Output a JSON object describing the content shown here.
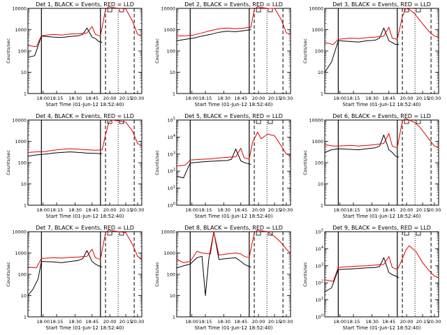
{
  "chart_data": [
    {
      "type": "line",
      "title": "Det 1, BLACK = Events, RED = LLD",
      "xlabel": "Start Time (01-Jun-12 18:52:40)",
      "ylabel": "Counts/sec",
      "x_ticks": [
        "18:00",
        "18:15",
        "18:30",
        "18:45",
        "20:00",
        "20:15",
        "20:30"
      ],
      "y_ticks": [
        "1",
        "10",
        "100",
        "1000",
        "10000"
      ],
      "y_scale": "log",
      "ylim": [
        1,
        10000
      ],
      "series": [
        {
          "color": "#000000",
          "x": [
            0,
            8,
            16,
            30,
            40,
            50,
            60,
            65,
            70,
            76,
            80,
            84,
            88
          ],
          "y": [
            50,
            60,
            500,
            450,
            430,
            480,
            520,
            600,
            1200,
            450,
            380,
            280,
            250
          ]
        },
        {
          "color": "#e00000",
          "x": [
            0,
            10,
            16,
            30,
            40,
            50,
            60,
            70,
            76,
            80,
            86,
            92,
            96,
            100,
            108,
            116,
            124,
            130,
            135
          ],
          "y": [
            180,
            160,
            520,
            600,
            560,
            620,
            650,
            700,
            1400,
            600,
            500,
            9000,
            12000,
            11000,
            10000,
            9500,
            2500,
            600,
            500
          ]
        }
      ]
    },
    {
      "type": "line",
      "title": "Det 2, BLACK = Events, RED = LLD",
      "xlabel": "Start Time (01-Jun-12 18:52:40)",
      "ylabel": "Counts/sec",
      "x_ticks": [
        "18:00",
        "18:15",
        "18:30",
        "18:45",
        "20:00",
        "20:15",
        "20:30"
      ],
      "y_ticks": [
        "1",
        "10",
        "100",
        "1000",
        "10000"
      ],
      "y_scale": "log",
      "ylim": [
        1,
        10000
      ],
      "series": [
        {
          "color": "#000000",
          "x": [
            0,
            10,
            20,
            30,
            40,
            50,
            60,
            70,
            80,
            88
          ],
          "y": [
            300,
            350,
            400,
            500,
            600,
            750,
            850,
            800,
            900,
            1000
          ]
        },
        {
          "color": "#e00000",
          "x": [
            0,
            10,
            20,
            30,
            40,
            50,
            60,
            70,
            80,
            88,
            92,
            96,
            100,
            108,
            116,
            124,
            130,
            135
          ],
          "y": [
            500,
            520,
            560,
            700,
            900,
            1100,
            1200,
            1100,
            1200,
            1300,
            9000,
            12000,
            11000,
            10000,
            10000,
            3000,
            700,
            600
          ]
        }
      ]
    },
    {
      "type": "line",
      "title": "Det 3, BLACK = Events, RED = LLD",
      "xlabel": "Start Time (01-Jun-12 18:52:40)",
      "ylabel": "Counts/sec",
      "x_ticks": [
        "18:00",
        "18:15",
        "18:30",
        "18:45",
        "20:00",
        "20:15",
        "20:30"
      ],
      "y_ticks": [
        "1",
        "10",
        "100",
        "1000",
        "10000"
      ],
      "y_scale": "log",
      "ylim": [
        1,
        10000
      ],
      "series": [
        {
          "color": "#000000",
          "x": [
            0,
            8,
            16,
            30,
            40,
            50,
            60,
            65,
            70,
            76,
            80,
            84,
            88
          ],
          "y": [
            10,
            30,
            300,
            280,
            260,
            300,
            320,
            400,
            1200,
            300,
            250,
            200,
            200
          ]
        },
        {
          "color": "#e00000",
          "x": [
            0,
            10,
            16,
            30,
            40,
            50,
            60,
            70,
            76,
            80,
            86,
            92,
            96,
            100,
            106,
            112,
            118,
            124,
            130,
            135
          ],
          "y": [
            250,
            200,
            350,
            400,
            380,
            420,
            450,
            500,
            1300,
            400,
            350,
            4000,
            10000,
            9000,
            6000,
            3000,
            1500,
            800,
            500,
            450
          ]
        }
      ]
    },
    {
      "type": "line",
      "title": "Det 4, BLACK = Events, RED = LLD",
      "xlabel": "Start Time (01-Jun-12 18:52:40)",
      "ylabel": "Counts/sec",
      "x_ticks": [
        "18:00",
        "18:15",
        "18:30",
        "18:45",
        "20:00",
        "20:15",
        "20:30"
      ],
      "y_ticks": [
        "1",
        "10",
        "100",
        "1000",
        "10000"
      ],
      "y_scale": "log",
      "ylim": [
        1,
        10000
      ],
      "series": [
        {
          "color": "#000000",
          "x": [
            0,
            10,
            20,
            30,
            40,
            50,
            60,
            70,
            80,
            88
          ],
          "y": [
            200,
            230,
            250,
            280,
            300,
            320,
            300,
            280,
            270,
            260
          ]
        },
        {
          "color": "#e00000",
          "x": [
            0,
            10,
            20,
            30,
            40,
            50,
            60,
            70,
            80,
            88,
            92,
            96,
            100,
            108,
            116,
            124,
            130,
            135
          ],
          "y": [
            300,
            320,
            330,
            380,
            420,
            450,
            430,
            400,
            380,
            400,
            2000,
            8000,
            10000,
            9000,
            8000,
            3000,
            800,
            600
          ]
        }
      ]
    },
    {
      "type": "line",
      "title": "Det 5, BLACK = Events, RED = LLD",
      "xlabel": "Start Time (01-Jun-12 18:52:40)",
      "ylabel": "Counts/sec",
      "x_ticks": [
        "18:00",
        "18:15",
        "18:30",
        "18:45",
        "20:00",
        "20:15",
        "20:30"
      ],
      "y_ticks": [
        "10^0",
        "10^1",
        "10^2",
        "10^3",
        "10^4",
        "10^5"
      ],
      "y_scale": "log",
      "ylim": [
        1,
        100000
      ],
      "series": [
        {
          "color": "#000000",
          "x": [
            0,
            8,
            16,
            30,
            40,
            50,
            60,
            65,
            70,
            76,
            80,
            84,
            88
          ],
          "y": [
            50,
            40,
            300,
            350,
            380,
            400,
            420,
            500,
            2000,
            400,
            320,
            280,
            250
          ]
        },
        {
          "color": "#e00000",
          "x": [
            0,
            10,
            16,
            30,
            40,
            50,
            60,
            70,
            76,
            80,
            86,
            90,
            96,
            100,
            108,
            116,
            124,
            130,
            135
          ],
          "y": [
            200,
            220,
            450,
            500,
            520,
            600,
            650,
            700,
            2200,
            600,
            500,
            5000,
            20000,
            8000,
            15000,
            12000,
            3000,
            1000,
            800
          ]
        }
      ]
    },
    {
      "type": "line",
      "title": "Det 6, BLACK = Events, RED = LLD",
      "xlabel": "Start Time (01-Jun-12 18:52:40)",
      "ylabel": "Counts/sec",
      "x_ticks": [
        "18:00",
        "18:15",
        "18:30",
        "18:45",
        "20:00",
        "20:15",
        "20:30"
      ],
      "y_ticks": [
        "1",
        "10",
        "100",
        "1000",
        "10000"
      ],
      "y_scale": "log",
      "ylim": [
        1,
        10000
      ],
      "series": [
        {
          "color": "#000000",
          "x": [
            0,
            8,
            16,
            30,
            40,
            50,
            60,
            65,
            70,
            76,
            80,
            84,
            88
          ],
          "y": [
            300,
            400,
            450,
            420,
            400,
            450,
            500,
            600,
            2000,
            400,
            300,
            200,
            180
          ]
        },
        {
          "color": "#e00000",
          "x": [
            0,
            10,
            16,
            30,
            40,
            50,
            60,
            70,
            76,
            80,
            86,
            92,
            96,
            100,
            106,
            112,
            118,
            124,
            130,
            135
          ],
          "y": [
            700,
            600,
            600,
            650,
            600,
            650,
            700,
            800,
            2300,
            600,
            500,
            9000,
            12000,
            10000,
            8000,
            5000,
            2500,
            1200,
            600,
            500
          ]
        }
      ]
    },
    {
      "type": "line",
      "title": "Det 7, BLACK = Events, RED = LLD",
      "xlabel": "Start Time (01-Jun-12 18:52:40)",
      "ylabel": "Counts/sec",
      "x_ticks": [
        "18:00",
        "18:15",
        "18:30",
        "18:45",
        "20:00",
        "20:15",
        "20:30"
      ],
      "y_ticks": [
        "1",
        "10",
        "100",
        "1000",
        "10000"
      ],
      "y_scale": "log",
      "ylim": [
        1,
        10000
      ],
      "series": [
        {
          "color": "#000000",
          "x": [
            0,
            6,
            12,
            16,
            30,
            40,
            50,
            60,
            65,
            70,
            76,
            80,
            84,
            88
          ],
          "y": [
            10,
            20,
            60,
            400,
            380,
            350,
            400,
            450,
            550,
            1300,
            400,
            300,
            250,
            220
          ]
        },
        {
          "color": "#e00000",
          "x": [
            0,
            10,
            16,
            30,
            40,
            50,
            60,
            70,
            76,
            80,
            86,
            92,
            96,
            100,
            108,
            116,
            124,
            130,
            135
          ],
          "y": [
            220,
            200,
            550,
            600,
            580,
            620,
            650,
            700,
            1500,
            600,
            500,
            9000,
            12000,
            11000,
            10000,
            9000,
            2500,
            700,
            500
          ]
        }
      ]
    },
    {
      "type": "line",
      "title": "Det 8, BLACK = Events, RED = LLD",
      "xlabel": "Start Time (01-Jun-12 18:52:40)",
      "ylabel": "Counts/sec",
      "x_ticks": [
        "18:00",
        "18:15",
        "18:30",
        "18:45",
        "20:00",
        "20:15",
        "20:30"
      ],
      "y_ticks": [
        "1",
        "10",
        "100",
        "1000",
        "10000"
      ],
      "y_scale": "log",
      "ylim": [
        1,
        10000
      ],
      "series": [
        {
          "color": "#000000",
          "x": [
            0,
            8,
            16,
            24,
            30,
            34,
            38,
            44,
            50,
            60,
            70,
            76,
            80,
            84,
            88
          ],
          "y": [
            200,
            250,
            300,
            600,
            700,
            10,
            500,
            10000,
            500,
            550,
            600,
            400,
            300,
            250,
            220
          ]
        },
        {
          "color": "#e00000",
          "x": [
            0,
            8,
            16,
            24,
            30,
            40,
            44,
            50,
            60,
            70,
            76,
            80,
            86,
            92,
            96,
            100,
            108,
            116,
            124,
            130,
            135
          ],
          "y": [
            500,
            350,
            400,
            1200,
            1000,
            900,
            10000,
            800,
            900,
            1000,
            900,
            700,
            600,
            9000,
            12000,
            11000,
            10000,
            6000,
            3000,
            1500,
            1000
          ]
        }
      ]
    },
    {
      "type": "line",
      "title": "Det 9, BLACK = Events, RED = LLD",
      "xlabel": "Start Time (01-Jun-12 18:52:40)",
      "ylabel": "Counts/sec",
      "x_ticks": [
        "18:00",
        "18:15",
        "18:30",
        "18:45",
        "20:00",
        "20:15",
        "20:30"
      ],
      "y_ticks": [
        "10^0",
        "10^1",
        "10^2",
        "10^3",
        "10^4",
        "10^5"
      ],
      "y_scale": "log",
      "ylim": [
        1,
        100000
      ],
      "series": [
        {
          "color": "#000000",
          "x": [
            0,
            8,
            16,
            30,
            40,
            50,
            60,
            65,
            70,
            76,
            80,
            84,
            88
          ],
          "y": [
            30,
            50,
            600,
            650,
            700,
            750,
            800,
            900,
            3000,
            400,
            300,
            250,
            200
          ]
        },
        {
          "color": "#e00000",
          "x": [
            0,
            10,
            16,
            30,
            40,
            50,
            60,
            70,
            76,
            80,
            86,
            90,
            96,
            100,
            108,
            116,
            124,
            130,
            135
          ],
          "y": [
            150,
            120,
            800,
            900,
            950,
            1000,
            1100,
            1200,
            3500,
            800,
            600,
            1500,
            8000,
            15000,
            7000,
            1500,
            500,
            250,
            200
          ]
        }
      ]
    }
  ]
}
